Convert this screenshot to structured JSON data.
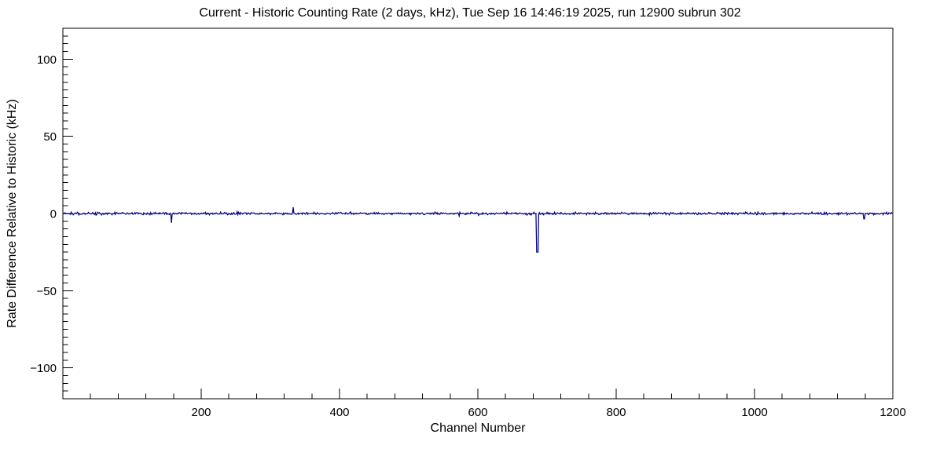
{
  "chart_data": {
    "type": "line",
    "title": "Current - Historic Counting Rate (2 days, kHz), Tue Sep 16 14:46:19 2025, run 12900 subrun 302",
    "xlabel": "Channel Number",
    "ylabel": "Rate Difference Relative to Historic (kHz)",
    "xlim": [
      0,
      1200
    ],
    "ylim": [
      -120,
      120
    ],
    "x_major_ticks": [
      200,
      400,
      600,
      800,
      1000,
      1200
    ],
    "x_minor_step": 40,
    "y_major_ticks": [
      -100,
      -50,
      0,
      50,
      100
    ],
    "y_minor_step": 5,
    "grid": false,
    "legend": false,
    "line_color": "#00008b",
    "axis_color": "#000000",
    "background_color": "#ffffff",
    "series": {
      "name": "rate-difference-vs-channel",
      "n_channels": 1200,
      "baseline": 0,
      "noise_sigma": 0.35,
      "spikes": [
        {
          "channel": 157,
          "value": -6,
          "width": 1
        },
        {
          "channel": 333,
          "value": 4,
          "width": 1
        },
        {
          "channel": 685,
          "value": -25,
          "width": 3
        },
        {
          "channel": 1158,
          "value": -3.5,
          "width": 2
        }
      ]
    }
  }
}
